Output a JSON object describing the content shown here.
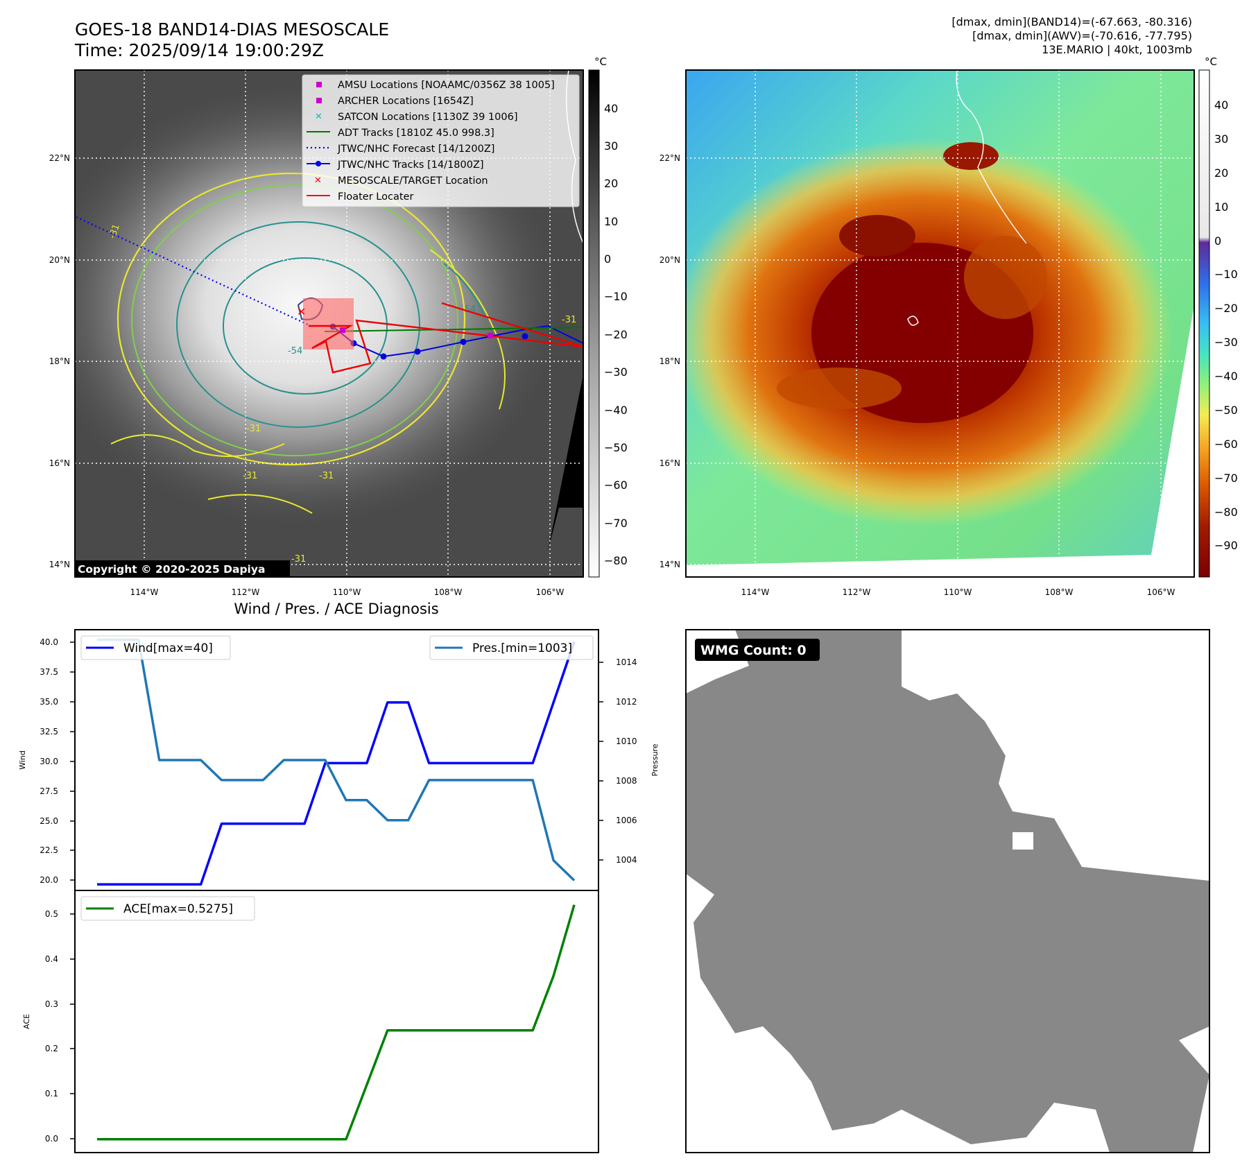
{
  "header": {
    "title_line1": "GOES-18 BAND14-DIAS MESOSCALE",
    "title_line2": "Time: 2025/09/14 19:00:29Z",
    "stats": [
      "[dmax, dmin](BAND14)=(-67.663, -80.316)",
      "[dmax, dmin](AWV)=(-70.616, -77.795)",
      "13E.MARIO | 40kt, 1003mb"
    ]
  },
  "maps": {
    "lat_labels": [
      "22°N",
      "20°N",
      "18°N",
      "16°N",
      "14°N"
    ],
    "lon_labels": [
      "114°W",
      "112°W",
      "110°W",
      "108°W",
      "106°W"
    ],
    "copyright": "Copyright © 2020-2025 Dapiya",
    "contour_labels": [
      "-31",
      "-54",
      "-31",
      "-31",
      "-54",
      "-31",
      "-31",
      "-31"
    ],
    "legend": [
      {
        "label": "AMSU Locations [NOAAMC/0356Z 38 1005]",
        "marker": "square",
        "color": "#cc00cc"
      },
      {
        "label": "ARCHER Locations [1654Z]",
        "marker": "square",
        "color": "#cc00cc"
      },
      {
        "label": "SATCON Locations [1130Z 39 1006]",
        "marker": "x",
        "color": "#11bbbb"
      },
      {
        "label": "ADT Tracks [1810Z 45.0 998.3]",
        "marker": "line",
        "color": "#007700"
      },
      {
        "label": "JTWC/NHC Forecast [14/1200Z]",
        "marker": "dotted",
        "color": "#0000ff"
      },
      {
        "label": "JTWC/NHC Tracks [14/1800Z]",
        "marker": "line-dot",
        "color": "#0000ff"
      },
      {
        "label": "MESOSCALE/TARGET Location",
        "marker": "x",
        "color": "#ff0000"
      },
      {
        "label": "Floater Locater",
        "marker": "line",
        "color": "#ff0000"
      }
    ],
    "colorbar_gray": {
      "unit": "°C",
      "ticks": [
        "40",
        "30",
        "20",
        "10",
        "0",
        "−10",
        "−20",
        "−30",
        "−40",
        "−50",
        "−60",
        "−70",
        "−80"
      ]
    },
    "colorbar_color": {
      "unit": "°C",
      "ticks": [
        "40",
        "30",
        "20",
        "10",
        "0",
        "−10",
        "−20",
        "−30",
        "−40",
        "−50",
        "−60",
        "−70",
        "−80",
        "−90"
      ]
    }
  },
  "diagnosis": {
    "title": "Wind / Pres. / ACE Diagnosis",
    "wind_legend": "Wind[max=40]",
    "pres_legend": "Pres.[min=1003]",
    "ace_legend": "ACE[max=0.5275]",
    "ylabel_wind": "Wind",
    "ylabel_pres": "Pressure",
    "ylabel_ace": "ACE",
    "wind_ticks": [
      "40.0",
      "37.5",
      "35.0",
      "32.5",
      "30.0",
      "27.5",
      "25.0",
      "22.5",
      "20.0"
    ],
    "pres_ticks": [
      "1014",
      "1012",
      "1010",
      "1008",
      "1006",
      "1004"
    ],
    "ace_ticks": [
      "0.5",
      "0.4",
      "0.3",
      "0.2",
      "0.1",
      "0.0"
    ]
  },
  "wmg": {
    "label": "WMG Count: 0"
  },
  "chart_data": [
    {
      "type": "line",
      "title": "Wind / Pres. / ACE Diagnosis",
      "x": [
        0,
        1,
        2,
        3,
        4,
        5,
        6,
        7,
        8,
        9,
        10,
        11,
        12,
        13,
        14,
        15,
        16,
        17,
        18,
        19,
        20,
        21,
        22,
        23
      ],
      "series": [
        {
          "name": "Wind[max=40]",
          "axis": "left",
          "color": "#0000ff",
          "values": [
            20,
            20,
            20,
            20,
            20,
            20,
            25,
            25,
            25,
            25,
            25,
            30,
            30,
            30,
            35,
            35,
            30,
            30,
            30,
            30,
            30,
            30,
            35,
            40
          ]
        },
        {
          "name": "Pres.[min=1003]",
          "axis": "right",
          "color": "#1f77b4",
          "values": [
            1015,
            1015,
            1015,
            1009,
            1009,
            1009,
            1008,
            1008,
            1008,
            1009,
            1009,
            1009,
            1007,
            1007,
            1006,
            1006,
            1008,
            1008,
            1008,
            1008,
            1008,
            1008,
            1004,
            1003
          ]
        }
      ],
      "ylim_left": [
        19.5,
        41
      ],
      "ylim_right": [
        1002.5,
        1015.5
      ],
      "ylabel": "Wind",
      "ylabel_right": "Pressure"
    },
    {
      "type": "line",
      "x": [
        0,
        1,
        2,
        3,
        4,
        5,
        6,
        7,
        8,
        9,
        10,
        11,
        12,
        13,
        14,
        15,
        16,
        17,
        18,
        19,
        20,
        21,
        22,
        23
      ],
      "series": [
        {
          "name": "ACE[max=0.5275]",
          "color": "#008000",
          "values": [
            0,
            0,
            0,
            0,
            0,
            0,
            0,
            0,
            0,
            0,
            0,
            0,
            0,
            0.1225,
            0.245,
            0.245,
            0.245,
            0.245,
            0.245,
            0.245,
            0.245,
            0.245,
            0.3675,
            0.5275
          ]
        }
      ],
      "ylim": [
        -0.03,
        0.56
      ],
      "ylabel": "ACE"
    }
  ]
}
